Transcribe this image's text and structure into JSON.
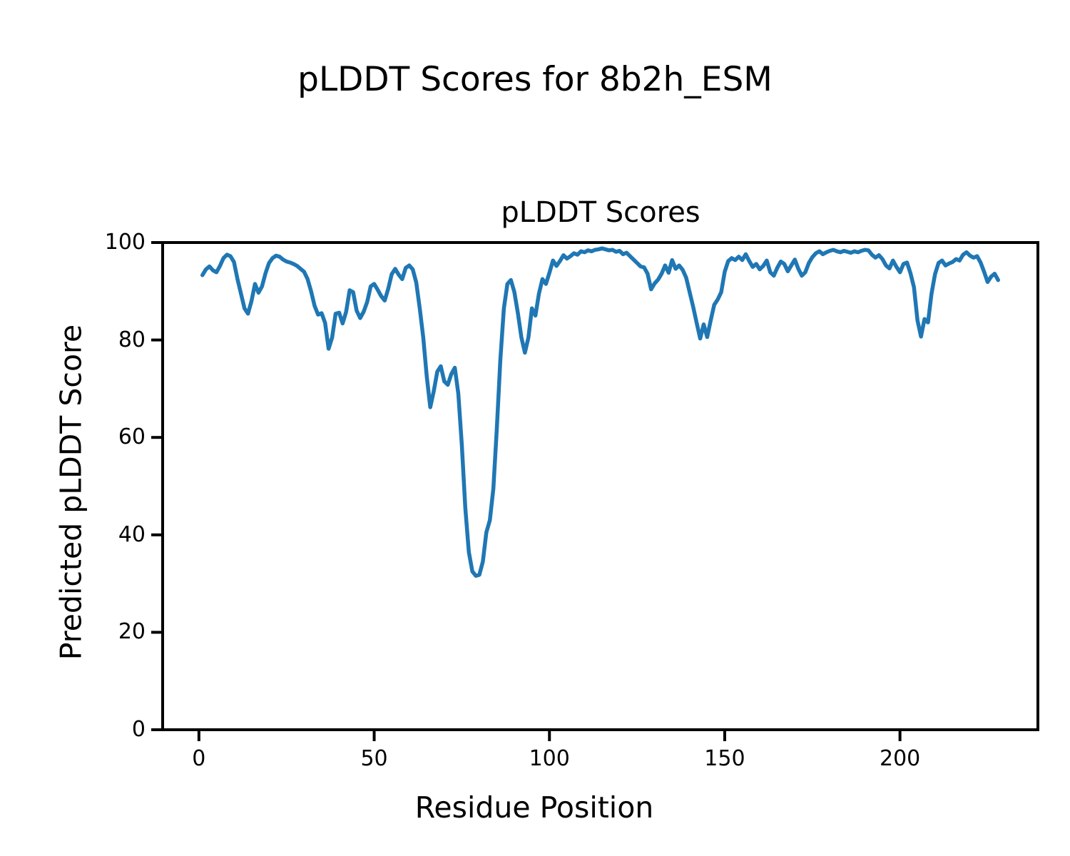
{
  "figure": {
    "suptitle": "pLDDT Scores for 8b2h_ESM",
    "background_color": "#ffffff",
    "text_color": "#000000"
  },
  "chart_data": {
    "type": "line",
    "title": "pLDDT Scores",
    "xlabel": "Residue Position",
    "ylabel": "Predicted pLDDT Score",
    "x_tick_labels": [
      0,
      50,
      100,
      150,
      200
    ],
    "y_tick_labels": [
      0,
      20,
      40,
      60,
      80,
      100
    ],
    "xlim": [
      -10.35,
      239.35
    ],
    "ylim": [
      0,
      100
    ],
    "grid": false,
    "legend": "none",
    "line_color": "#1f77b4",
    "axis_color": "#000000",
    "series": [
      {
        "name": "pLDDT",
        "x_start": 1,
        "x_step": 1,
        "values": [
          93.3,
          94.5,
          95.1,
          94.3,
          93.9,
          95.2,
          96.8,
          97.5,
          97.2,
          96.0,
          92.5,
          89.5,
          86.5,
          85.4,
          88.0,
          91.5,
          89.7,
          91.0,
          93.7,
          95.8,
          96.8,
          97.3,
          97.1,
          96.5,
          96.1,
          95.9,
          95.6,
          95.2,
          94.6,
          94.0,
          92.5,
          90.0,
          87.0,
          85.2,
          85.5,
          83.5,
          78.2,
          80.5,
          85.4,
          85.6,
          83.4,
          85.8,
          90.2,
          89.8,
          86.0,
          84.5,
          85.8,
          87.8,
          91.0,
          91.5,
          90.3,
          89.0,
          88.1,
          90.5,
          93.5,
          94.6,
          93.4,
          92.5,
          94.8,
          95.3,
          94.5,
          91.8,
          86.5,
          80.5,
          72.5,
          66.2,
          69.5,
          73.5,
          74.6,
          71.5,
          70.8,
          73.0,
          74.3,
          69.0,
          58.5,
          45.5,
          36.5,
          32.5,
          31.6,
          31.8,
          34.5,
          40.5,
          43.0,
          49.5,
          62.0,
          76.0,
          86.5,
          91.5,
          92.3,
          89.8,
          85.5,
          80.5,
          77.4,
          80.5,
          86.5,
          85.0,
          89.5,
          92.5,
          91.5,
          93.8,
          96.3,
          95.2,
          96.2,
          97.4,
          96.7,
          97.2,
          97.8,
          97.5,
          98.2,
          98.0,
          98.4,
          98.2,
          98.5,
          98.6,
          98.8,
          98.6,
          98.4,
          98.5,
          98.1,
          98.3,
          97.6,
          97.9,
          97.2,
          96.5,
          95.8,
          95.1,
          94.9,
          93.6,
          90.4,
          91.6,
          92.4,
          93.6,
          95.3,
          93.8,
          96.4,
          94.6,
          95.3,
          94.4,
          92.8,
          89.8,
          86.8,
          83.5,
          80.3,
          83.2,
          80.6,
          84.0,
          87.2,
          88.3,
          89.8,
          94.0,
          96.2,
          96.8,
          96.4,
          97.1,
          96.4,
          97.6,
          96.2,
          95.0,
          95.6,
          94.5,
          95.2,
          96.3,
          93.9,
          93.2,
          94.8,
          96.1,
          95.6,
          94.1,
          95.3,
          96.5,
          94.6,
          93.2,
          93.9,
          95.8,
          97.0,
          97.8,
          98.2,
          97.6,
          98.0,
          98.3,
          98.5,
          98.2,
          98.0,
          98.3,
          98.1,
          97.9,
          98.2,
          98.0,
          98.3,
          98.5,
          98.4,
          97.5,
          96.9,
          97.4,
          96.6,
          95.3,
          94.7,
          96.3,
          95.0,
          93.9,
          95.6,
          95.9,
          93.7,
          90.8,
          84.0,
          80.7,
          84.3,
          83.6,
          89.5,
          93.5,
          95.8,
          96.3,
          95.3,
          95.7,
          96.0,
          96.6,
          96.3,
          97.5,
          98.0,
          97.3,
          96.9,
          97.2,
          95.9,
          94.0,
          91.9,
          93.0,
          93.6,
          92.3
        ]
      }
    ]
  }
}
